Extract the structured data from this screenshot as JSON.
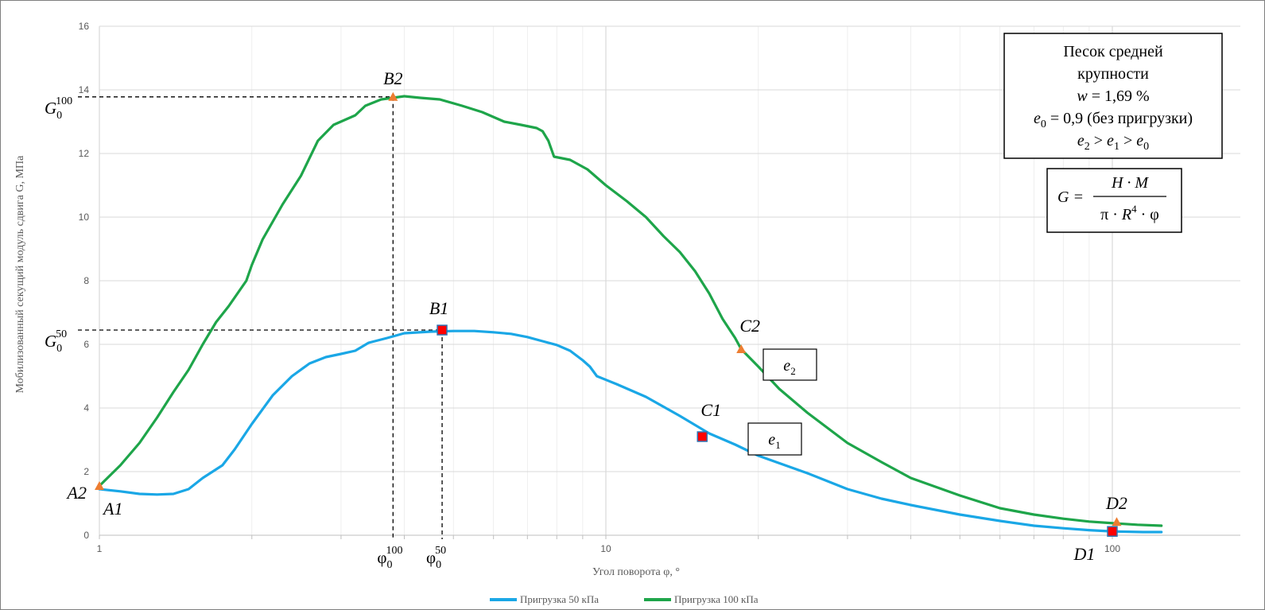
{
  "chart_data": {
    "type": "line",
    "xscale": "log",
    "xlim": [
      1,
      150
    ],
    "ylim": [
      0,
      16
    ],
    "xticks": [
      "1",
      "10",
      "100"
    ],
    "yticks": [
      "0",
      "2",
      "4",
      "6",
      "8",
      "10",
      "12",
      "14",
      "16"
    ],
    "xlabel": "Угол поворота φ, °",
    "ylabel": "Мобилизованный секущий модуль сдвига G, МПа",
    "grid": true,
    "legend_position": "bottom",
    "series": [
      {
        "name": "Пригрузка 50 кПа",
        "color": "#1aa7e6",
        "points": [
          [
            1.0,
            1.45
          ],
          [
            1.1,
            1.38
          ],
          [
            1.2,
            1.3
          ],
          [
            1.3,
            1.28
          ],
          [
            1.4,
            1.3
          ],
          [
            1.5,
            1.45
          ],
          [
            1.6,
            1.8
          ],
          [
            1.75,
            2.2
          ],
          [
            1.85,
            2.7
          ],
          [
            2.0,
            3.5
          ],
          [
            2.2,
            4.4
          ],
          [
            2.4,
            5.0
          ],
          [
            2.6,
            5.4
          ],
          [
            2.8,
            5.6
          ],
          [
            3.0,
            5.7
          ],
          [
            3.2,
            5.8
          ],
          [
            3.4,
            6.05
          ],
          [
            3.7,
            6.2
          ],
          [
            4.0,
            6.35
          ],
          [
            4.5,
            6.4
          ],
          [
            5.0,
            6.42
          ],
          [
            5.5,
            6.42
          ],
          [
            6.0,
            6.38
          ],
          [
            6.5,
            6.33
          ],
          [
            7.0,
            6.23
          ],
          [
            7.5,
            6.1
          ],
          [
            8.0,
            5.98
          ],
          [
            8.5,
            5.8
          ],
          [
            9.0,
            5.5
          ],
          [
            9.3,
            5.3
          ],
          [
            9.6,
            5.0
          ],
          [
            10.5,
            4.75
          ],
          [
            12.0,
            4.35
          ],
          [
            14.0,
            3.75
          ],
          [
            16.0,
            3.2
          ],
          [
            18.0,
            2.85
          ],
          [
            20.0,
            2.5
          ],
          [
            25.0,
            1.95
          ],
          [
            30.0,
            1.45
          ],
          [
            35.0,
            1.15
          ],
          [
            40.0,
            0.95
          ],
          [
            50.0,
            0.65
          ],
          [
            60.0,
            0.45
          ],
          [
            70.0,
            0.3
          ],
          [
            80.0,
            0.22
          ],
          [
            90.0,
            0.16
          ],
          [
            100.0,
            0.12
          ],
          [
            115.0,
            0.1
          ],
          [
            125.0,
            0.1
          ]
        ],
        "markers": [
          {
            "label": "A1",
            "x": 1.0,
            "y": 1.45
          },
          {
            "label": "B1",
            "x": 4.75,
            "y": 6.45
          },
          {
            "label": "C1",
            "x": 15.5,
            "y": 3.1
          },
          {
            "label": "D1",
            "x": 100.0,
            "y": 0.12
          }
        ]
      },
      {
        "name": "Пригрузка 100 кПа",
        "color": "#1ea54a",
        "points": [
          [
            1.0,
            1.55
          ],
          [
            1.1,
            2.2
          ],
          [
            1.2,
            2.9
          ],
          [
            1.3,
            3.7
          ],
          [
            1.4,
            4.5
          ],
          [
            1.5,
            5.2
          ],
          [
            1.6,
            6.0
          ],
          [
            1.7,
            6.7
          ],
          [
            1.8,
            7.2
          ],
          [
            1.95,
            8.0
          ],
          [
            2.0,
            8.5
          ],
          [
            2.1,
            9.3
          ],
          [
            2.3,
            10.4
          ],
          [
            2.5,
            11.3
          ],
          [
            2.7,
            12.4
          ],
          [
            2.9,
            12.9
          ],
          [
            3.2,
            13.2
          ],
          [
            3.35,
            13.5
          ],
          [
            3.6,
            13.7
          ],
          [
            4.0,
            13.8
          ],
          [
            4.3,
            13.75
          ],
          [
            4.7,
            13.7
          ],
          [
            5.2,
            13.5
          ],
          [
            5.7,
            13.3
          ],
          [
            6.3,
            13.0
          ],
          [
            6.8,
            12.9
          ],
          [
            7.3,
            12.8
          ],
          [
            7.5,
            12.7
          ],
          [
            7.7,
            12.4
          ],
          [
            7.9,
            11.9
          ],
          [
            8.5,
            11.8
          ],
          [
            9.2,
            11.5
          ],
          [
            10.0,
            11.0
          ],
          [
            11.0,
            10.5
          ],
          [
            12.0,
            10.0
          ],
          [
            13.0,
            9.4
          ],
          [
            14.0,
            8.9
          ],
          [
            15.0,
            8.3
          ],
          [
            16.0,
            7.6
          ],
          [
            17.0,
            6.8
          ],
          [
            18.0,
            6.2
          ],
          [
            18.5,
            5.85
          ],
          [
            20.0,
            5.3
          ],
          [
            22.0,
            4.6
          ],
          [
            25.0,
            3.85
          ],
          [
            30.0,
            2.9
          ],
          [
            35.0,
            2.3
          ],
          [
            40.0,
            1.8
          ],
          [
            50.0,
            1.25
          ],
          [
            60.0,
            0.85
          ],
          [
            70.0,
            0.65
          ],
          [
            80.0,
            0.52
          ],
          [
            90.0,
            0.43
          ],
          [
            100.0,
            0.38
          ],
          [
            112.0,
            0.33
          ],
          [
            125.0,
            0.3
          ]
        ],
        "markers": [
          {
            "label": "A2",
            "x": 1.0,
            "y": 1.55
          },
          {
            "label": "B2",
            "x": 3.8,
            "y": 13.78
          },
          {
            "label": "C2",
            "x": 18.5,
            "y": 5.85
          },
          {
            "label": "D2",
            "x": 102.0,
            "y": 0.42
          }
        ]
      }
    ],
    "reference_lines": {
      "g0_100": {
        "y": 13.78,
        "x": 3.8,
        "y_label_base": "G",
        "y_label_sub": "0",
        "y_label_sup": "100",
        "x_label_base": "φ",
        "x_label_sub": "0",
        "x_label_sup": "100"
      },
      "g0_50": {
        "y": 6.45,
        "x": 4.75,
        "y_label_base": "G",
        "y_label_sub": "0",
        "y_label_sup": "50",
        "x_label_base": "φ",
        "x_label_sub": "0",
        "x_label_sup": "50"
      }
    },
    "annotations": {
      "info_box": {
        "line1": "Песок средней",
        "line2": "крупности",
        "w_label": "w",
        "w_value": " = 1,69 %",
        "e0_base": "e",
        "e0_sub": "0",
        "e0_value": " = 0,9 (без пригрузки)",
        "ineq": [
          {
            "base": "e",
            "sub": "2"
          },
          {
            "base": "e",
            "sub": "1"
          },
          {
            "base": "e",
            "sub": "0"
          }
        ],
        "ineq_op": " > "
      },
      "formula": {
        "lhs": "G =",
        "numerator": "H · M",
        "den_pre": "π · ",
        "den_R": "R",
        "den_exp": "4",
        "den_post": " · φ"
      },
      "curve_labels": [
        {
          "base": "e",
          "sub": "2"
        },
        {
          "base": "e",
          "sub": "1"
        }
      ]
    },
    "colors": {
      "series1": "#1aa7e6",
      "series2": "#1ea54a",
      "triangle_marker": "#ed7d31",
      "square_marker": "#ff0000",
      "grid": "#d9d9d9"
    }
  }
}
